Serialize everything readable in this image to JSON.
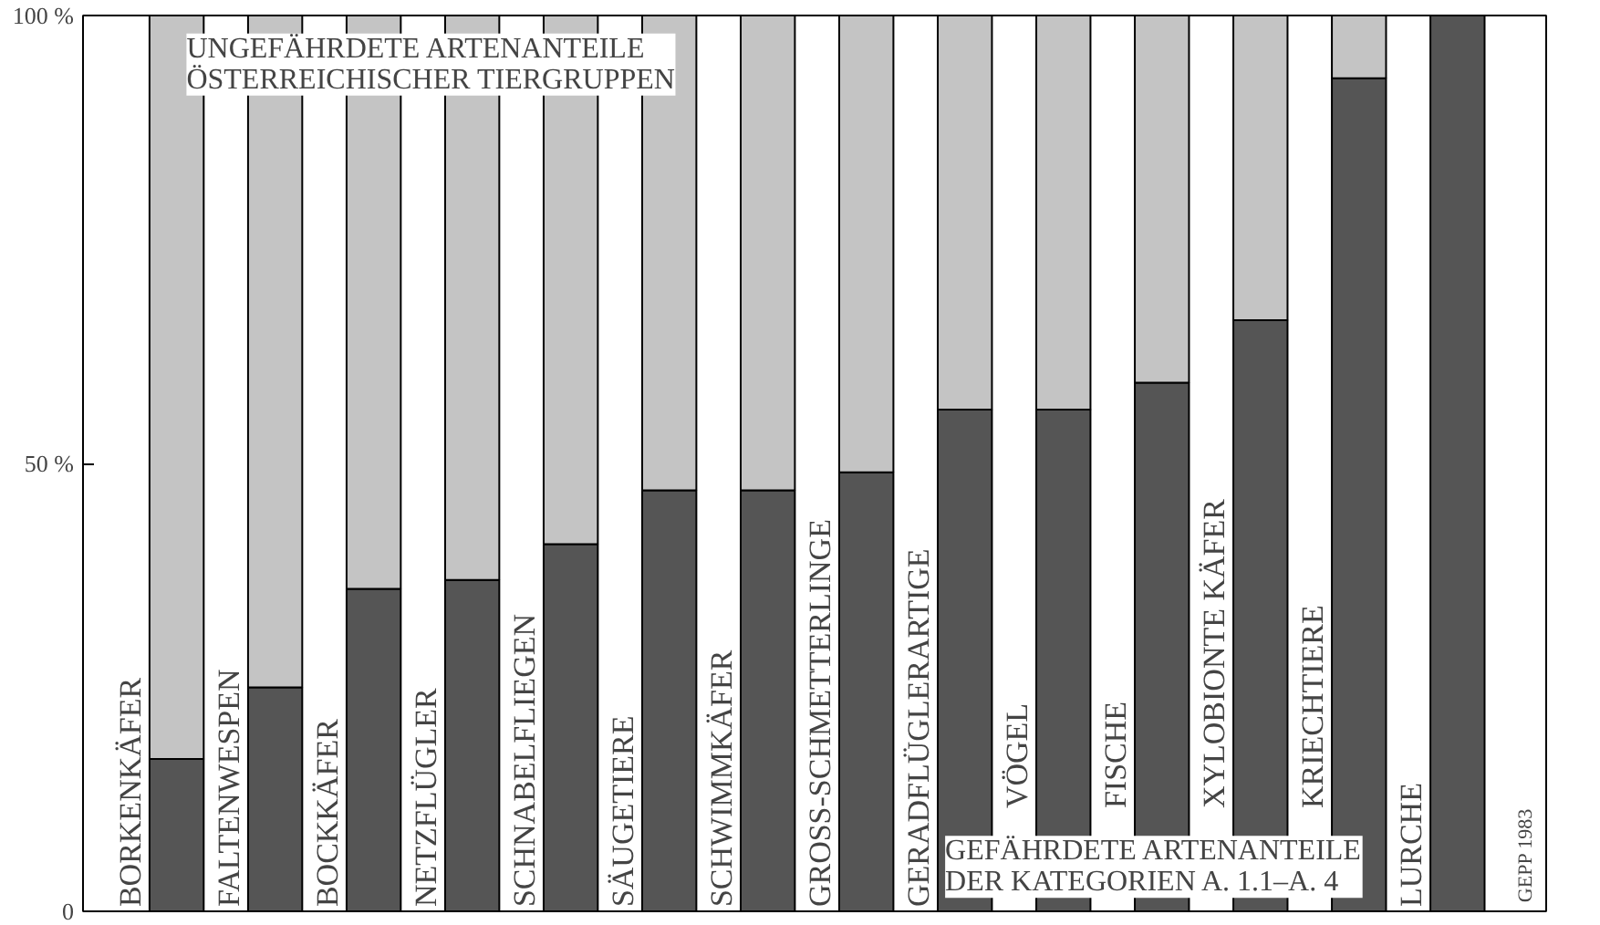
{
  "chart_data": {
    "type": "bar",
    "stacked": true,
    "categories": [
      "BORKENKÄFER",
      "FALTENWESPEN",
      "BOCKKÄFER",
      "NETZFLÜGLER",
      "SCHNABELFLIEGEN",
      "SÄUGETIERE",
      "SCHWIMMKÄFER",
      "GROSS-SCHMETTERLINGE",
      "GERADFLÜGLERARTIGE",
      "VÖGEL",
      "FISCHE",
      "XYLOBIONTE KÄFER",
      "KRIECHTIERE",
      "LURCHE"
    ],
    "series": [
      {
        "name": "GEFÄHRDETE ARTENANTEILE DER KATEGORIEN A. 1.1–A. 4",
        "color": "#555555",
        "values": [
          17,
          25,
          36,
          37,
          41,
          47,
          47,
          49,
          56,
          56,
          59,
          66,
          93,
          100
        ]
      },
      {
        "name": "UNGEFÄHRDETE ARTENANTEILE ÖSTERREICHISCHER TIERGRUPPEN",
        "color": "#c4c4c4",
        "values": [
          83,
          75,
          64,
          63,
          59,
          53,
          53,
          51,
          44,
          44,
          41,
          34,
          7,
          0
        ]
      }
    ],
    "ylim": [
      0,
      100
    ],
    "yticks": [
      0,
      {
        "value": 50,
        "label": "50 %"
      },
      {
        "value": 100,
        "label": "100 %"
      }
    ],
    "grid": false,
    "annotations": [
      "GEPP 1983"
    ]
  }
}
